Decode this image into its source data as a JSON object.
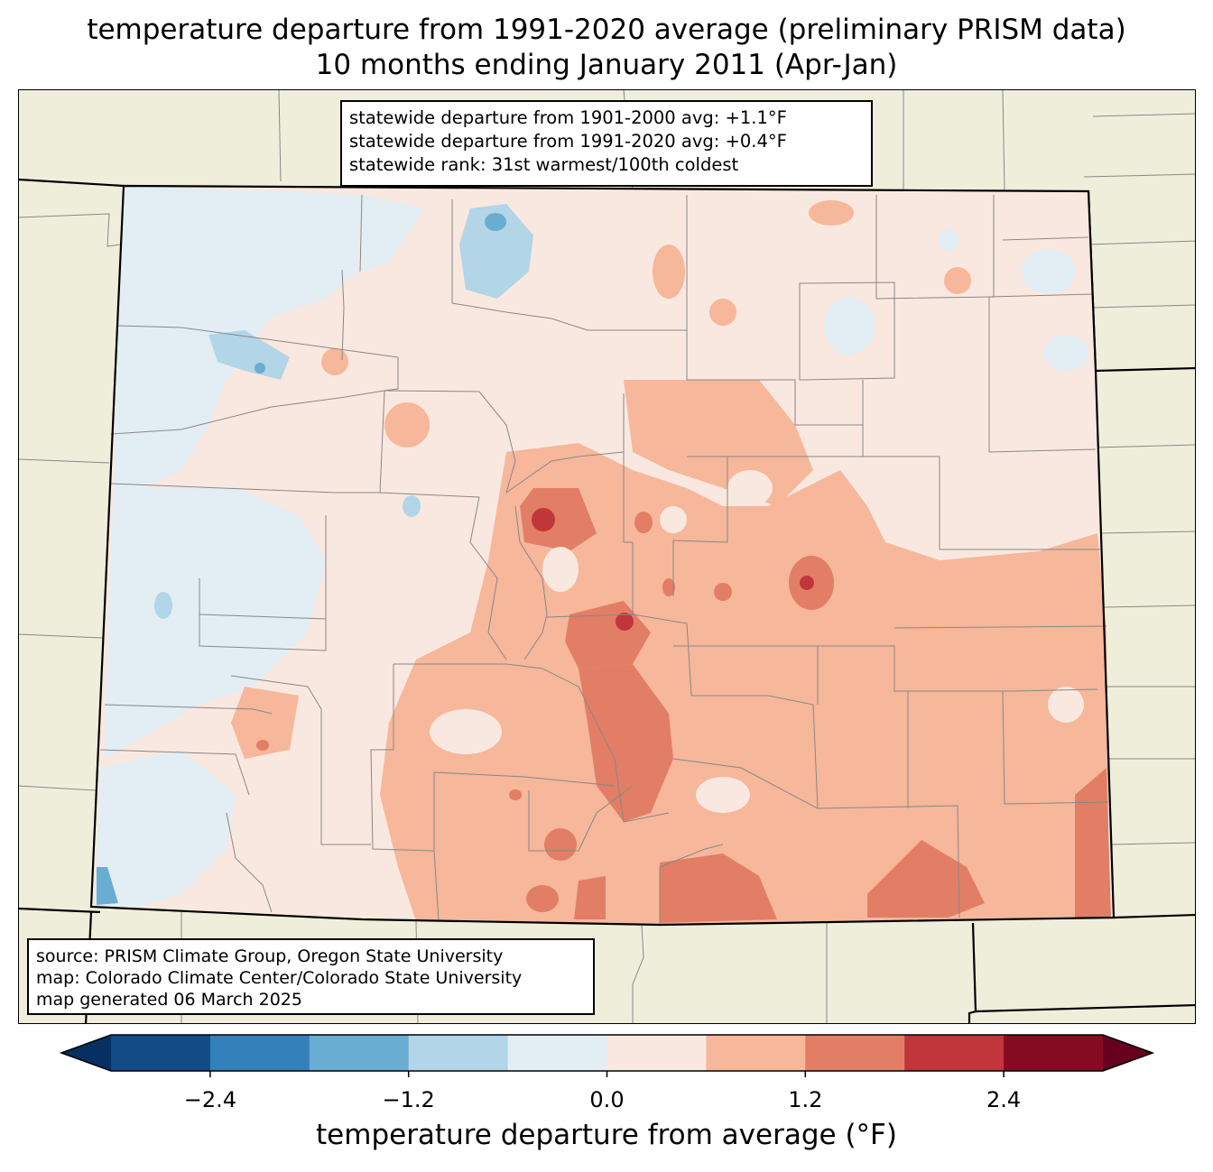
{
  "title": {
    "line1": "temperature departure from 1991-2020 average (preliminary PRISM data)",
    "line2": "10 months ending January 2011 (Apr-Jan)"
  },
  "stats": {
    "line1": "statewide departure from 1901-2000 avg: +1.1°F",
    "line2": "statewide departure from 1991-2020 avg: +0.4°F",
    "line3": "statewide rank: 31st warmest/100th coldest"
  },
  "source": {
    "line1": "source: PRISM Climate Group, Oregon State University",
    "line2": "map: Colorado Climate Center/Colorado State University",
    "line3": "map generated 06 March 2025"
  },
  "colorbar": {
    "label": "temperature departure from average (°F)",
    "ticks": [
      "−2.4",
      "−1.2",
      "0.0",
      "1.2",
      "2.4"
    ],
    "tick_values": [
      -2.4,
      -1.2,
      0.0,
      1.2,
      2.4
    ],
    "bounds": [
      -3.0,
      -2.4,
      -1.8,
      -1.2,
      -0.6,
      0.0,
      0.6,
      1.2,
      1.8,
      2.4,
      3.0
    ],
    "colors": [
      "#134b87",
      "#3380ba",
      "#6aadd3",
      "#b2d5e7",
      "#e3edf4",
      "#f9e8df",
      "#f6b79b",
      "#e27e65",
      "#c0363a",
      "#850b22"
    ],
    "under_color": "#053061",
    "over_color": "#67001f"
  },
  "map": {
    "land_color": "#efeedb",
    "state_outline": "Colorado",
    "palette": {
      "blue_dark": "#6aadd3",
      "blue_mid": "#b2d5e7",
      "blue_light": "#e3edf4",
      "red_light": "#f9e8df",
      "red_mid": "#f6b79b",
      "red_dark": "#e27e65",
      "red_hot": "#c0363a"
    }
  }
}
